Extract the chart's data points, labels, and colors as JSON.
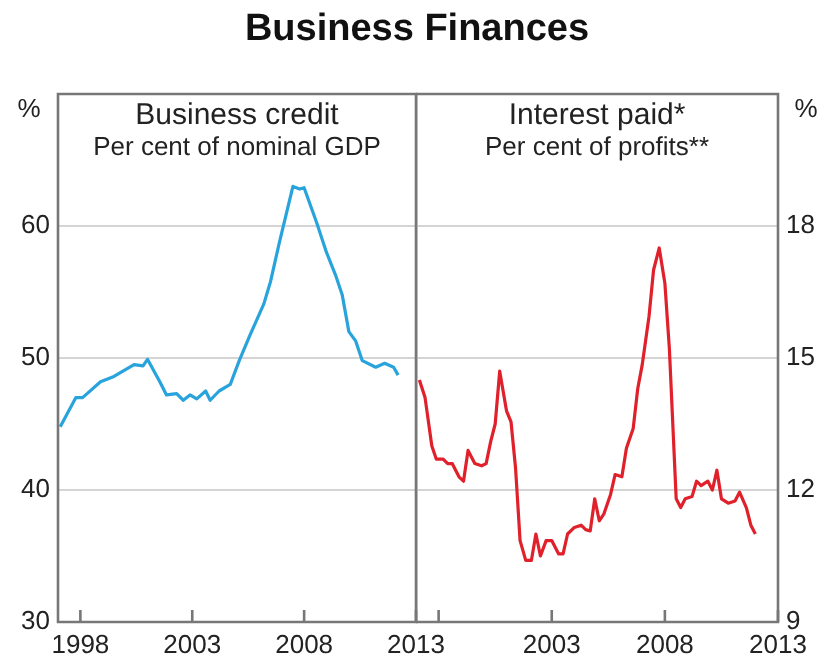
{
  "chart_data": [
    {
      "type": "line",
      "title": "Business credit",
      "subtitle": "Per cent of nominal GDP",
      "ylabel": "%",
      "annotations": [
        "Business Finances"
      ],
      "marker": "none",
      "grid": "y",
      "x": [
        1997.1,
        1997.8,
        1998.1,
        1998.9,
        1999.5,
        2000.4,
        2000.8,
        2001.0,
        2001.55,
        2001.85,
        2002.3,
        2002.6,
        2002.9,
        2003.2,
        2003.6,
        2003.8,
        2004.2,
        2004.7,
        2005.1,
        2005.6,
        2006.2,
        2006.5,
        2006.9,
        2007.4,
        2007.5,
        2007.8,
        2008.0,
        2008.55,
        2009.0,
        2009.4,
        2009.7,
        2010.0,
        2010.3,
        2010.6,
        2011.2,
        2011.6,
        2012.0,
        2012.2
      ],
      "series": [
        {
          "color": "#29a3dc",
          "values": [
            44.8,
            47.0,
            47.0,
            48.2,
            48.6,
            49.5,
            49.4,
            49.9,
            48.2,
            47.2,
            47.3,
            46.8,
            47.2,
            46.9,
            47.5,
            46.8,
            47.5,
            48.0,
            49.8,
            51.8,
            54.1,
            55.8,
            58.8,
            62.3,
            63.0,
            62.8,
            62.9,
            60.3,
            58.0,
            56.3,
            54.8,
            52.0,
            51.3,
            49.8,
            49.3,
            49.6,
            49.3,
            48.7
          ]
        }
      ],
      "xlim": [
        1997,
        2013
      ],
      "xticks": [
        1998,
        2003,
        2008,
        2013
      ],
      "ylim": [
        30,
        70
      ],
      "yticks": [
        30,
        40,
        50,
        60
      ]
    },
    {
      "type": "line",
      "title": "Interest paid*",
      "subtitle": "Per cent of profits**",
      "y2label": "%",
      "marker": "none",
      "grid": "y",
      "x": [
        1997.15,
        1997.4,
        1997.7,
        1997.9,
        1998.2,
        1998.4,
        1998.6,
        1998.9,
        1999.1,
        1999.3,
        1999.6,
        1999.9,
        2000.1,
        2000.3,
        2000.5,
        2000.7,
        2001.0,
        2001.2,
        2001.4,
        2001.6,
        2001.85,
        2002.1,
        2002.3,
        2002.5,
        2002.75,
        2003.0,
        2003.3,
        2003.5,
        2003.7,
        2004.0,
        2004.3,
        2004.5,
        2004.7,
        2004.9,
        2005.1,
        2005.3,
        2005.6,
        2005.8,
        2006.1,
        2006.3,
        2006.6,
        2006.8,
        2007.0,
        2007.3,
        2007.5,
        2007.75,
        2008.0,
        2008.2,
        2008.5,
        2008.7,
        2008.9,
        2009.2,
        2009.4,
        2009.6,
        2009.9,
        2010.1,
        2010.3,
        2010.5,
        2010.8,
        2011.1,
        2011.3,
        2011.6,
        2011.8,
        2012.0
      ],
      "series": [
        {
          "color": "#e0202a",
          "axis": "y2",
          "values": [
            14.5,
            14.1,
            13.0,
            12.7,
            12.7,
            12.6,
            12.6,
            12.3,
            12.2,
            12.9,
            12.6,
            12.55,
            12.6,
            13.1,
            13.5,
            14.7,
            13.8,
            13.55,
            12.5,
            10.85,
            10.4,
            10.4,
            11.0,
            10.5,
            10.85,
            10.85,
            10.55,
            10.55,
            11.0,
            11.15,
            11.2,
            11.1,
            11.07,
            11.8,
            11.3,
            11.45,
            11.9,
            12.35,
            12.3,
            12.95,
            13.4,
            14.3,
            14.85,
            15.95,
            17.0,
            17.5,
            16.7,
            15.2,
            11.8,
            11.6,
            11.8,
            11.85,
            12.2,
            12.1,
            12.2,
            12.0,
            12.45,
            11.8,
            11.7,
            11.75,
            11.95,
            11.6,
            11.2,
            11.0
          ]
        }
      ],
      "xlim": [
        1997,
        2013
      ],
      "xticks": [
        {
          "value": 1998,
          "label": null
        },
        2003,
        2008,
        2013
      ],
      "y2lim": [
        9,
        21
      ],
      "y2ticks": [
        9,
        12,
        15,
        18
      ]
    }
  ]
}
